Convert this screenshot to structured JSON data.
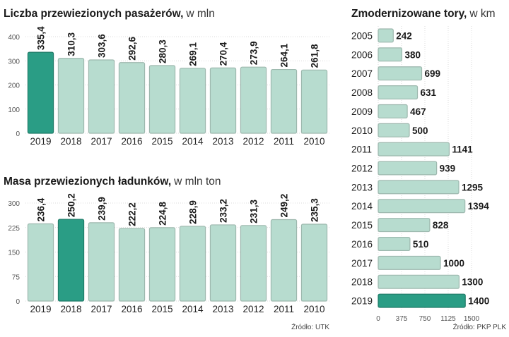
{
  "colors": {
    "bar": "#b7dccf",
    "highlight": "#2a9d85",
    "stroke": "#9db8ae"
  },
  "chart_data": [
    {
      "id": "passengers",
      "type": "bar",
      "title": "Liczba przewiezionych pasażerów,",
      "subtitle": "w mln",
      "categories": [
        "2019",
        "2018",
        "2017",
        "2016",
        "2015",
        "2014",
        "2013",
        "2012",
        "2011",
        "2010"
      ],
      "values": [
        335.4,
        310.3,
        303.6,
        292.6,
        280.3,
        269.1,
        270.4,
        273.9,
        264.1,
        261.8
      ],
      "value_labels": [
        "335,4",
        "310,3",
        "303,6",
        "292,6",
        "280,3",
        "269,1",
        "270,4",
        "273,9",
        "264,1",
        "261,8"
      ],
      "highlight_index": 0,
      "ylim": [
        0,
        400
      ],
      "yticks": [
        0,
        100,
        200,
        300,
        400
      ],
      "ytick_labels": [
        "0",
        "100",
        "200",
        "300",
        "400"
      ]
    },
    {
      "id": "cargo",
      "type": "bar",
      "title": "Masa przewiezionych ładunków,",
      "subtitle": "w mln ton",
      "categories": [
        "2019",
        "2018",
        "2017",
        "2016",
        "2015",
        "2014",
        "2013",
        "2012",
        "2011",
        "2010"
      ],
      "values": [
        236.4,
        250.2,
        239.9,
        222.2,
        224.8,
        228.9,
        233.2,
        231.3,
        249.2,
        235.3
      ],
      "value_labels": [
        "236,4",
        "250,2",
        "239,9",
        "222,2",
        "224,8",
        "228,9",
        "233,2",
        "231,3",
        "249,2",
        "235,3"
      ],
      "highlight_index": 1,
      "ylim": [
        0,
        300
      ],
      "yticks": [
        0,
        75,
        150,
        225,
        300
      ],
      "ytick_labels": [
        "0",
        "75",
        "150",
        "225",
        "300"
      ],
      "source": "Źródło: UTK"
    },
    {
      "id": "tracks",
      "type": "bar",
      "orientation": "horizontal",
      "title": "Zmodernizowane tory,",
      "subtitle": "w km",
      "categories": [
        "2005",
        "2006",
        "2007",
        "2008",
        "2009",
        "2010",
        "2011",
        "2012",
        "2013",
        "2014",
        "2015",
        "2016",
        "2017",
        "2018",
        "2019"
      ],
      "values": [
        242,
        380,
        699,
        631,
        467,
        500,
        1141,
        939,
        1295,
        1394,
        828,
        510,
        1000,
        1300,
        1400
      ],
      "value_labels": [
        "242",
        "380",
        "699",
        "631",
        "467",
        "500",
        "1141",
        "939",
        "1295",
        "1394",
        "828",
        "510",
        "1000",
        "1300",
        "1400"
      ],
      "highlight_index": 14,
      "xlim": [
        0,
        1500
      ],
      "xticks": [
        0,
        375,
        750,
        1125,
        1500
      ],
      "xtick_labels": [
        "0",
        "375",
        "750",
        "1125",
        "1500"
      ],
      "source": "Źródło: PKP PLK"
    }
  ]
}
